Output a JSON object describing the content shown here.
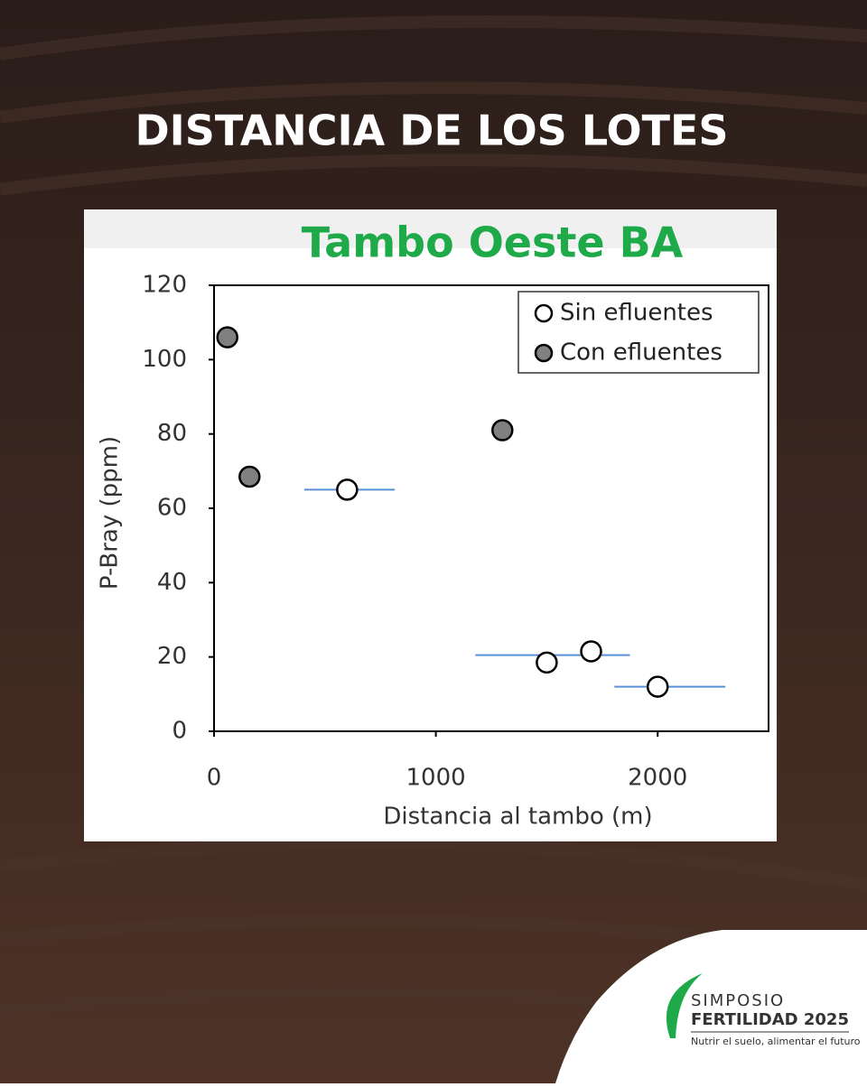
{
  "header": {
    "title": "DISTANCIA DE LOS LOTES"
  },
  "chart_data": {
    "type": "scatter",
    "title": "Tambo Oeste BA",
    "x_label": "Distancia al tambo (m)",
    "y_label": "P-Bray (ppm)",
    "xlim": [
      0,
      2500
    ],
    "xticks": [
      0,
      1000,
      2000
    ],
    "ylim": [
      0,
      120
    ],
    "yticks": [
      0,
      20,
      40,
      60,
      80,
      100,
      120
    ],
    "legend": "upper right",
    "series": [
      {
        "name": "Sin efluentes",
        "color": "#ffffff",
        "x": [
          600,
          1500,
          1700,
          2000
        ],
        "values": [
          65,
          18.5,
          21.5,
          12
        ]
      },
      {
        "name": "Con efluentes",
        "color": "#808080",
        "x": [
          60,
          160,
          1300
        ],
        "values": [
          106,
          68.5,
          81
        ]
      }
    ],
    "error_bars": {
      "color": "#5b8fd6",
      "items": [
        {
          "y": 65,
          "x": [
            407,
            815
          ]
        },
        {
          "y": 20.5,
          "x": [
            1178,
            1875
          ]
        },
        {
          "y": 12,
          "x": [
            1805,
            2305
          ]
        }
      ]
    }
  },
  "logo": {
    "line1": "SIMPOSIO",
    "line2": "FERTILIDAD 2025",
    "tagline": "Nutrir el suelo, alimentar el futuro"
  }
}
